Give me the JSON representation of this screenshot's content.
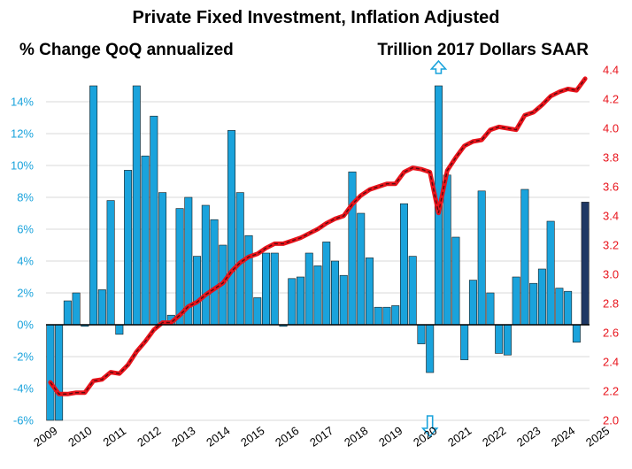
{
  "chart_data": {
    "type": "bar+line",
    "title": "Private Fixed Investment, Inflation Adjusted",
    "left_axis": {
      "label": "% Change QoQ annualized",
      "ylim": [
        -6,
        16
      ],
      "ticks": [
        -6,
        -4,
        -2,
        0,
        2,
        4,
        6,
        8,
        10,
        12,
        14
      ],
      "tick_labels": [
        "-6%",
        "-4%",
        "-2%",
        "0%",
        "2%",
        "4%",
        "6%",
        "8%",
        "10%",
        "12%",
        "14%"
      ]
    },
    "right_axis": {
      "label": "Trillion 2017 Dollars SAAR",
      "ylim": [
        2.0,
        4.4
      ],
      "ticks": [
        2.0,
        2.2,
        2.4,
        2.6,
        2.8,
        3.0,
        3.2,
        3.4,
        3.6,
        3.8,
        4.0,
        4.2,
        4.4
      ],
      "tick_labels": [
        "2.0",
        "2.2",
        "2.4",
        "2.6",
        "2.8",
        "3.0",
        "3.2",
        "3.4",
        "3.6",
        "3.8",
        "4.0",
        "4.2",
        "4.4"
      ]
    },
    "x_labels": [
      "2009",
      "2010",
      "2011",
      "2012",
      "2013",
      "2014",
      "2015",
      "2016",
      "2017",
      "2018",
      "2019",
      "2020",
      "2021",
      "2022",
      "2023",
      "2024",
      "2025"
    ],
    "first_year": 2009,
    "truncation_arrows": [
      {
        "quarter_index": 45,
        "direction": "up"
      },
      {
        "quarter_index": 44,
        "direction": "down"
      }
    ],
    "series": [
      {
        "name": "% Change QoQ annualized",
        "kind": "bar",
        "color": "#1aa3dc",
        "last_bar_color": "#1f3864",
        "values": [
          -6.0,
          -6.0,
          1.5,
          2.0,
          -0.1,
          15.0,
          2.2,
          7.8,
          -0.6,
          9.7,
          15.0,
          10.6,
          13.1,
          8.3,
          0.6,
          7.3,
          8.0,
          4.3,
          7.5,
          6.6,
          5.0,
          12.2,
          8.3,
          5.6,
          1.7,
          4.5,
          4.5,
          -0.1,
          2.9,
          3.0,
          4.5,
          3.7,
          5.2,
          4.0,
          3.1,
          9.6,
          7.0,
          4.2,
          1.1,
          1.1,
          1.2,
          7.6,
          4.3,
          -1.2,
          -3.0,
          15.0,
          9.4,
          5.5,
          -2.2,
          2.8,
          8.4,
          2.0,
          -1.8,
          -1.9,
          3.0,
          8.5,
          2.6,
          3.5,
          6.5,
          2.3,
          2.1,
          -1.1,
          7.7
        ]
      },
      {
        "name": "Trillion 2017 Dollars SAAR",
        "kind": "line",
        "color": "#e8141c",
        "values": [
          2.26,
          2.18,
          2.18,
          2.19,
          2.19,
          2.27,
          2.28,
          2.33,
          2.32,
          2.38,
          2.47,
          2.54,
          2.62,
          2.67,
          2.67,
          2.72,
          2.78,
          2.81,
          2.86,
          2.9,
          2.94,
          3.02,
          3.08,
          3.12,
          3.14,
          3.18,
          3.21,
          3.21,
          3.23,
          3.25,
          3.28,
          3.31,
          3.35,
          3.38,
          3.4,
          3.48,
          3.54,
          3.58,
          3.6,
          3.62,
          3.62,
          3.7,
          3.73,
          3.72,
          3.7,
          3.42,
          3.71,
          3.8,
          3.88,
          3.91,
          3.92,
          3.99,
          4.01,
          4.0,
          3.99,
          4.09,
          4.11,
          4.16,
          4.22,
          4.25,
          4.27,
          4.26,
          4.34
        ]
      }
    ],
    "grid": "horizontal",
    "legend": "none"
  }
}
